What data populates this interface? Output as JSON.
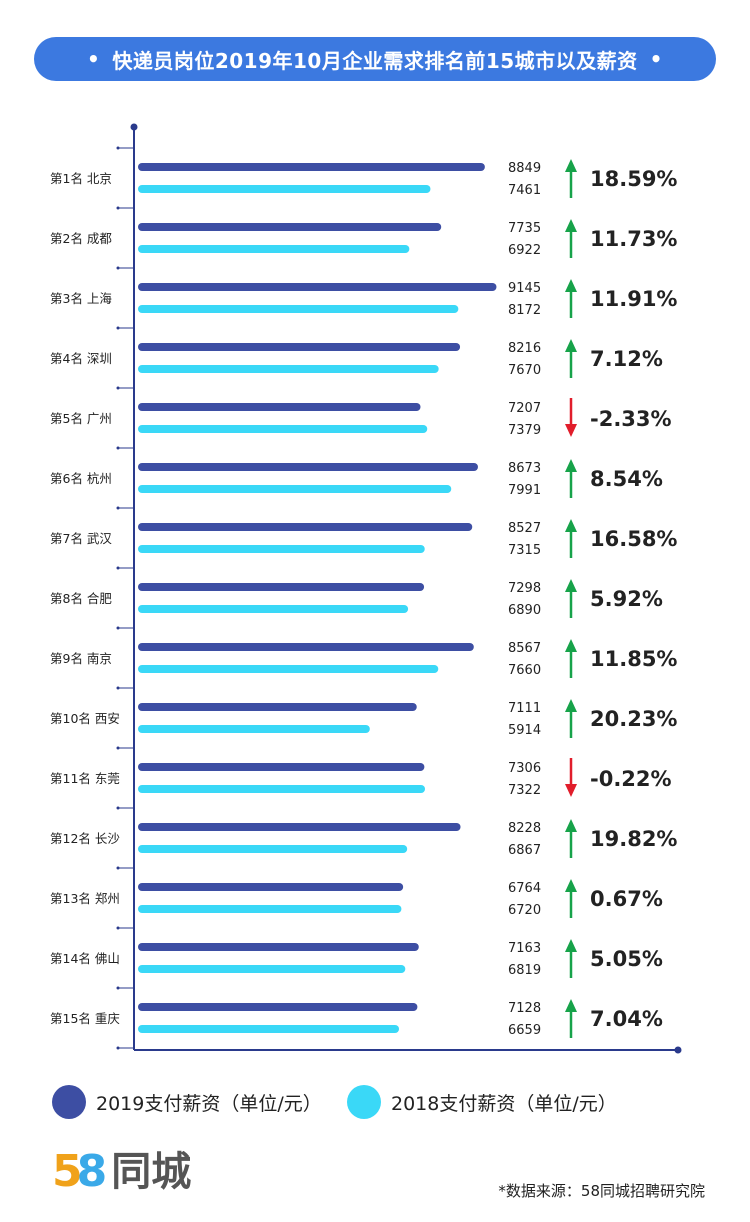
{
  "title": "快递员岗位2019年10月企业需求排名前15城市以及薪资",
  "title_bullet": "•",
  "colors": {
    "title_bg": "#3c79e0",
    "series_2019": "#3d4ea3",
    "series_2018": "#3ad8f7",
    "up": "#17a34a",
    "down": "#e11d2b",
    "axis": "#2a3a8c"
  },
  "chart_data": {
    "type": "bar",
    "orientation": "horizontal",
    "categories": [
      "第1名 北京",
      "第2名 成都",
      "第3名 上海",
      "第4名 深圳",
      "第5名 广州",
      "第6名 杭州",
      "第7名 武汉",
      "第8名 合肥",
      "第9名 南京",
      "第10名 西安",
      "第11名 东莞",
      "第12名 长沙",
      "第13名 郑州",
      "第14名 佛山",
      "第15名 重庆"
    ],
    "series": [
      {
        "name": "2019支付薪资（单位/元）",
        "values": [
          8849,
          7735,
          9145,
          8216,
          7207,
          8673,
          8527,
          7298,
          8567,
          7111,
          7306,
          8228,
          6764,
          7163,
          7128
        ]
      },
      {
        "name": "2018支付薪资（单位/元）",
        "values": [
          7461,
          6922,
          8172,
          7670,
          7379,
          7991,
          7315,
          6890,
          7660,
          5914,
          7322,
          6867,
          6720,
          6819,
          6659
        ]
      }
    ],
    "changes": [
      "18.59%",
      "11.73%",
      "11.91%",
      "7.12%",
      "-2.33%",
      "8.54%",
      "16.58%",
      "5.92%",
      "11.85%",
      "20.23%",
      "-0.22%",
      "19.82%",
      "0.67%",
      "5.05%",
      "7.04%"
    ],
    "directions": [
      "up",
      "up",
      "up",
      "up",
      "down",
      "up",
      "up",
      "up",
      "up",
      "up",
      "down",
      "up",
      "up",
      "up",
      "up"
    ],
    "legend_position": "bottom"
  },
  "legend": {
    "item_2019": "2019支付薪资（单位/元）",
    "item_2018": "2018支付薪资（单位/元）"
  },
  "logo": {
    "num5": "5",
    "num8": "8",
    "text": "同城"
  },
  "source": "*数据来源：58同城招聘研究院"
}
